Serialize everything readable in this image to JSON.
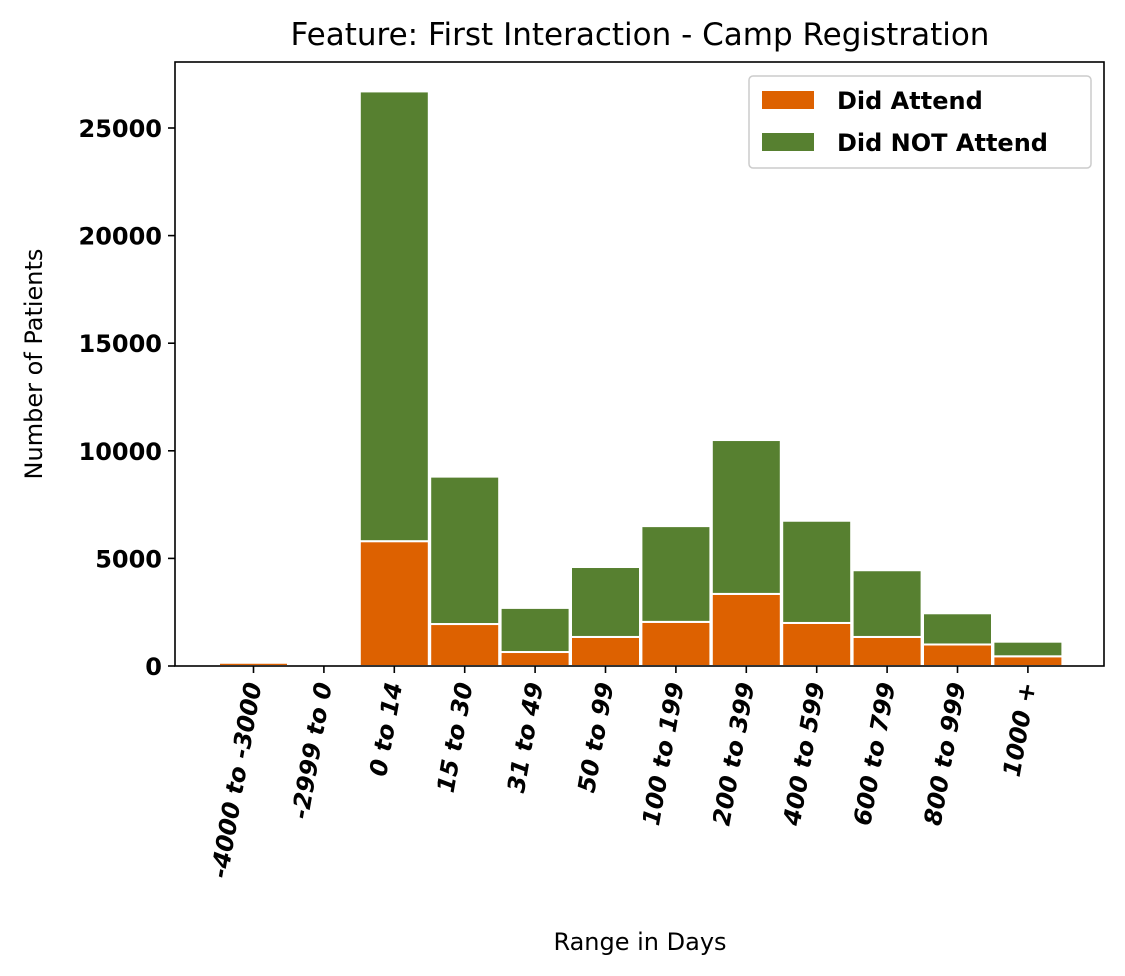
{
  "chart_data": {
    "type": "bar",
    "stacked": true,
    "title": "Feature: First Interaction - Camp Registration",
    "xlabel": "Range in Days",
    "ylabel": "Number of Patients",
    "categories": [
      "-4000 to -3000",
      "-2999 to 0",
      "0 to 14",
      "15 to 30",
      "31 to 49",
      "50 to 99",
      "100 to 199",
      "200 to 399",
      "400 to 599",
      "600 to 799",
      "800 to 999",
      "1000 +"
    ],
    "series": [
      {
        "name": "Did Attend",
        "color": "#dd6100",
        "values": [
          150,
          0,
          5800,
          1950,
          650,
          1350,
          2050,
          3350,
          2000,
          1350,
          1000,
          450
        ]
      },
      {
        "name": "Did NOT Attend",
        "color": "#578030",
        "values": [
          0,
          50,
          20900,
          6850,
          2050,
          3250,
          4450,
          7150,
          4750,
          3100,
          1450,
          680
        ]
      }
    ],
    "yticks": [
      "0",
      "5000",
      "10000",
      "15000",
      "20000",
      "25000"
    ],
    "ylim": [
      0,
      28000
    ],
    "grid": false,
    "legend_position": "top-right"
  }
}
